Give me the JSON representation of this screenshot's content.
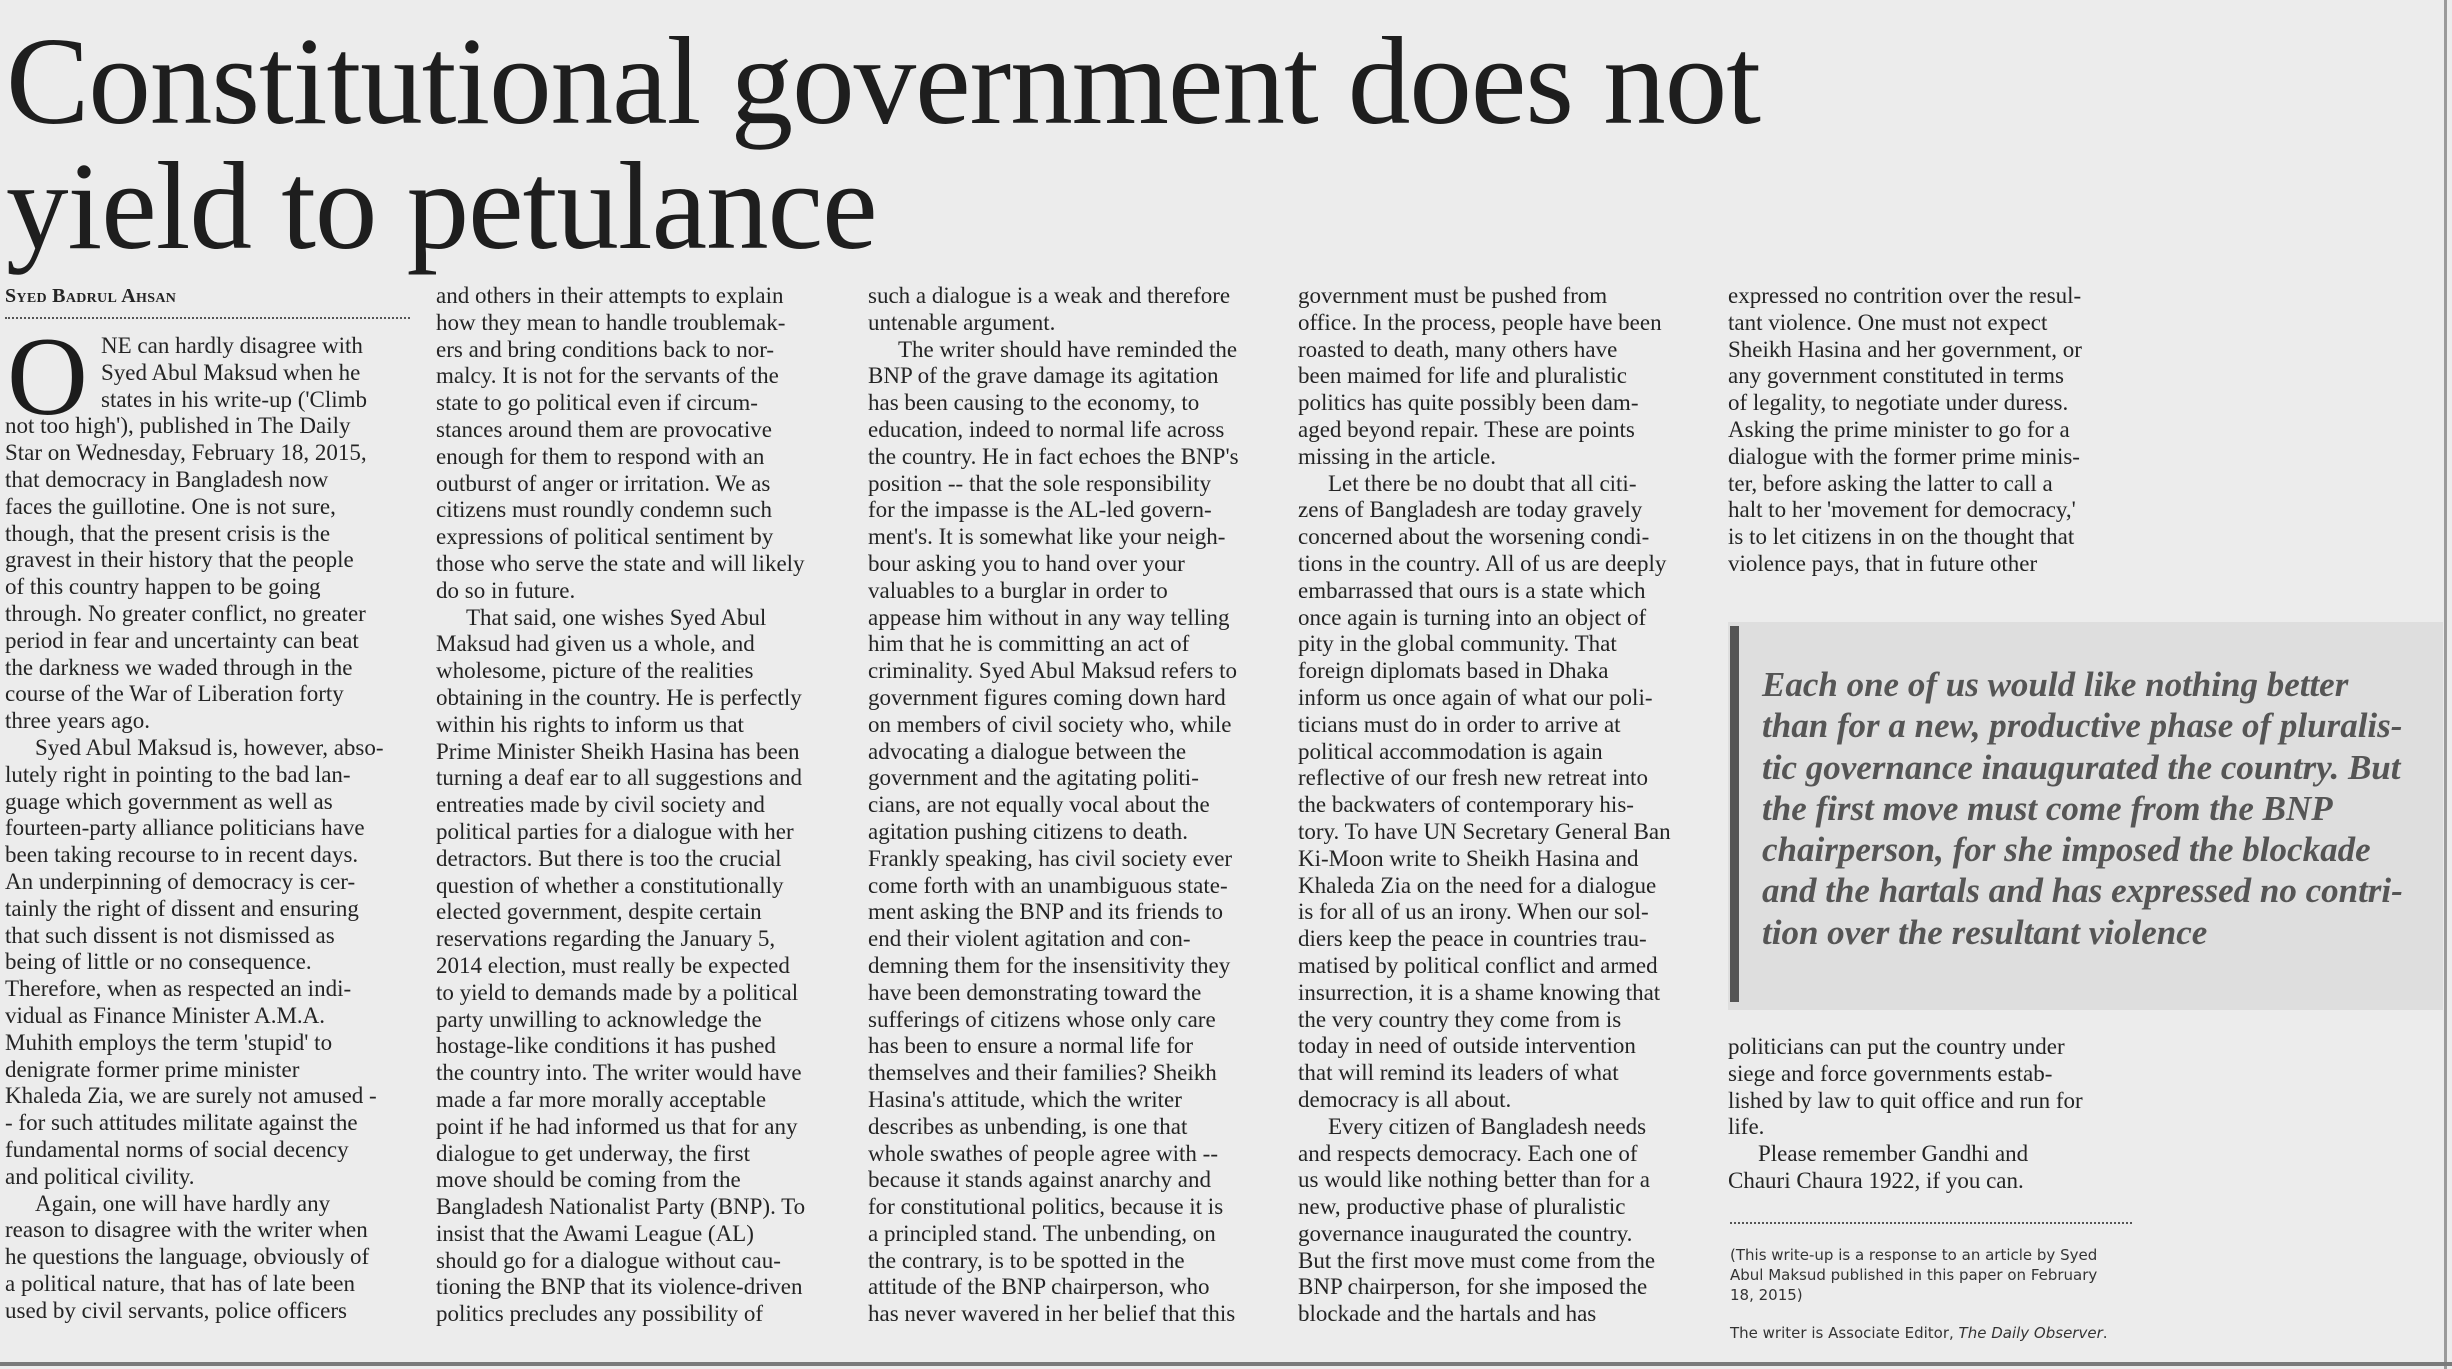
{
  "headline": [
    "Constitutional government does not",
    "yield to petulance"
  ],
  "byline": "Syed Badrul Ahsan",
  "columns": [
    {
      "paragraphs": [
        {
          "dropcap": "O",
          "lines": [
            "NE can hardly disagree with",
            "Syed Abul Maksud when he",
            "states in his write-up ('Climb",
            "not too high'), published in The Daily",
            "Star on Wednesday, February 18, 2015,",
            "that democracy in Bangladesh now",
            "faces the guillotine. One is not sure,",
            "though, that the present crisis is the",
            "gravest in their history that the people",
            "of this country happen to be going",
            "through. No greater conflict, no greater",
            "period in fear and uncertainty can beat",
            "the darkness we waded through in the",
            "course of the War of Liberation forty",
            "three years ago."
          ]
        },
        {
          "lines": [
            "Syed Abul Maksud is, however, abso-",
            "lutely right in pointing to the bad lan-",
            "guage which government as well as",
            "fourteen-party alliance politicians have",
            "been taking recourse to in recent days.",
            "An underpinning of democracy is cer-",
            "tainly the right of dissent and ensuring",
            "that such dissent is not dismissed as",
            "being of little or no consequence.",
            "Therefore, when as respected an indi-",
            "vidual as Finance Minister A.M.A.",
            "Muhith employs the term 'stupid' to",
            "denigrate former prime minister",
            "Khaleda Zia, we are surely not amused -",
            "- for such attitudes militate against the",
            "fundamental norms of social decency",
            "and political civility."
          ]
        },
        {
          "lines": [
            "Again, one will have hardly any",
            "reason to disagree with the writer when",
            "he questions the language, obviously of",
            "a political nature, that has of late been",
            "used by civil servants, police officers"
          ]
        }
      ]
    },
    {
      "paragraphs": [
        {
          "continued": true,
          "lines": [
            "and others in their attempts to explain",
            "how they mean to handle troublemak-",
            "ers and bring conditions back to nor-",
            "malcy. It is not for the servants of the",
            "state to go political even if circum-",
            "stances around them are provocative",
            "enough for them to respond with an",
            "outburst of anger or irritation. We as",
            "citizens must roundly condemn such",
            "expressions of political sentiment by",
            "those who serve the state and will likely",
            "do so in future."
          ]
        },
        {
          "lines": [
            "That said, one wishes Syed Abul",
            "Maksud had given us a whole, and",
            "wholesome, picture of the realities",
            "obtaining in the country. He is perfectly",
            "within his rights to inform us that",
            "Prime Minister Sheikh Hasina has been",
            "turning a deaf ear to all suggestions and",
            "entreaties made by civil society and",
            "political parties for a dialogue with her",
            "detractors. But there is too the crucial",
            "question of whether a constitutionally",
            "elected government, despite certain",
            "reservations regarding the January 5,",
            "2014 election, must really be expected",
            "to yield to demands made by a political",
            "party unwilling to acknowledge the",
            "hostage-like conditions it has pushed",
            "the country into. The writer would have",
            "made a far more morally acceptable",
            "point if he had informed us that for any",
            "dialogue to get underway, the first",
            "move should be coming from the",
            "Bangladesh Nationalist Party (BNP). To",
            "insist that the Awami League (AL)",
            "should go for a dialogue without cau-",
            "tioning the BNP that its violence-driven",
            "politics precludes any possibility of"
          ]
        }
      ]
    },
    {
      "paragraphs": [
        {
          "continued": true,
          "lines": [
            "such a dialogue is a weak and therefore",
            "untenable argument."
          ]
        },
        {
          "lines": [
            "The writer should have reminded the",
            "BNP of the grave damage its agitation",
            "has been causing to the economy, to",
            "education, indeed to normal life across",
            "the country. He in fact echoes the BNP's",
            "position -- that the sole responsibility",
            "for the impasse is the AL-led govern-",
            "ment's. It is somewhat like your neigh-",
            "bour asking you to hand over your",
            "valuables to a burglar in order to",
            "appease him without in any way telling",
            "him that he is committing an act of",
            "criminality. Syed Abul Maksud refers to",
            "government figures coming down hard",
            "on members of civil society who, while",
            "advocating a dialogue between the",
            "government and the agitating politi-",
            "cians, are not equally vocal about the",
            "agitation pushing citizens to death.",
            "Frankly speaking, has civil society ever",
            "come forth with an unambiguous state-",
            "ment asking the BNP and its friends to",
            "end their violent agitation and con-",
            "demning them for the insensitivity they",
            "have been demonstrating toward the",
            "sufferings of citizens whose only care",
            "has been to ensure a normal life for",
            "themselves and their families? Sheikh",
            "Hasina's attitude, which the writer",
            "describes as unbending, is one that",
            "whole swathes of people agree with --",
            "because it stands against anarchy and",
            "for constitutional politics, because it is",
            "a principled stand. The unbending, on",
            "the contrary, is to be spotted in the",
            "attitude of the BNP chairperson, who",
            "has never wavered in her belief that this"
          ]
        }
      ]
    },
    {
      "paragraphs": [
        {
          "continued": true,
          "lines": [
            "government must be pushed from",
            "office. In the process, people have been",
            "roasted to death, many others have",
            "been maimed for life and pluralistic",
            "politics has quite possibly been dam-",
            "aged beyond repair. These are points",
            "missing in the article."
          ]
        },
        {
          "lines": [
            "Let there be no doubt that all citi-",
            "zens of Bangladesh are today gravely",
            "concerned about the worsening condi-",
            "tions in the country. All of us are deeply",
            "embarrassed that ours is a state which",
            "once again is turning into an object of",
            "pity in the global community. That",
            "foreign diplomats based in Dhaka",
            "inform us once again of what our poli-",
            "ticians must do in order to arrive at",
            "political accommodation is again",
            "reflective of our fresh new retreat into",
            "the backwaters of contemporary his-",
            "tory. To have UN Secretary General Ban",
            "Ki-Moon write to Sheikh Hasina and",
            "Khaleda Zia on the need for a dialogue",
            "is for all of us an irony. When our sol-",
            "diers keep the peace in countries trau-",
            "matised by political conflict and armed",
            "insurrection, it is a shame knowing that",
            "the very country they come from is",
            "today in need of outside intervention",
            "that will remind its leaders of what",
            "democracy is all about."
          ]
        },
        {
          "lines": [
            "Every citizen of Bangladesh needs",
            "and respects democracy. Each one of",
            "us would like nothing better than for a",
            "new, productive phase of pluralistic",
            "governance inaugurated the country.",
            "But the first move must come from the",
            "BNP chairperson, for she imposed the",
            "blockade and the hartals and has"
          ]
        }
      ]
    },
    {
      "paragraphs": [
        {
          "continued": true,
          "lines": [
            "expressed no contrition over the resul-",
            "tant violence. One must not expect",
            "Sheikh Hasina and her government, or",
            "any government constituted in terms",
            "of legality, to negotiate under duress.",
            "Asking the prime minister to go for a",
            "dialogue with the former prime minis-",
            "ter, before asking the latter to call a",
            "halt to her 'movement for democracy,'",
            "is to let citizens in on the thought that",
            "violence pays, that in future other"
          ]
        }
      ]
    }
  ],
  "pull_quote": {
    "lines": [
      "Each one of us would like nothing better",
      "than for a new, productive phase of pluralis-",
      "tic governance inaugurated the country. But",
      "the first move must come from the BNP",
      "chairperson, for she imposed the blockade",
      "and the hartals and has expressed no contri-",
      "tion over the resultant violence"
    ]
  },
  "column5_end": {
    "paragraphs": [
      {
        "continued": true,
        "lines": [
          "politicians can put the country under",
          "siege and force governments estab-",
          "lished by law to quit office and run for",
          "life."
        ]
      },
      {
        "lines": [
          "Please remember Gandhi and",
          "Chauri Chaura 1922, if you can."
        ]
      }
    ]
  },
  "footnote": [
    "(This write-up is a response to an article by Syed",
    "Abul Maksud published in this paper on February",
    "18, 2015)"
  ],
  "writer_note": {
    "prefix": "The writer is Associate Editor, ",
    "publication": "The Daily Observer",
    "suffix": "."
  },
  "colors": {
    "paper": "#ececec",
    "text": "#242424",
    "quote_bg": "#dedede",
    "quote_bar": "#555555",
    "quote_text": "#555555"
  }
}
